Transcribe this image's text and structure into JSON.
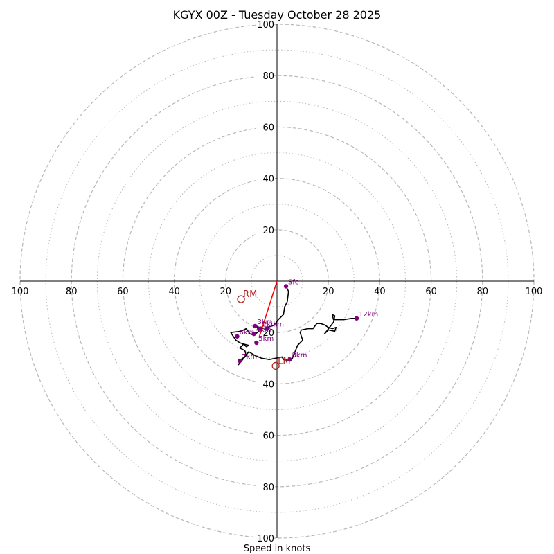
{
  "chart_data": {
    "type": "line",
    "title": "KGYX 00Z - Tuesday October 28 2025",
    "xlabel": "Speed in knots",
    "ylabel": "",
    "xlim": [
      -100,
      100
    ],
    "ylim": [
      -100,
      100
    ],
    "axis_tick_labels": [
      "100",
      "80",
      "60",
      "40",
      "20",
      "20",
      "40",
      "60",
      "80",
      "100",
      "100",
      "80",
      "60",
      "40",
      "20",
      "20",
      "40",
      "60",
      "80",
      "100"
    ],
    "ring_speeds_dashed": [
      20,
      40,
      60,
      80,
      100
    ],
    "ring_speeds_dotted": [
      10,
      30,
      50,
      70,
      90
    ],
    "hodograph": {
      "x": [
        3.5,
        4.5,
        4.0,
        3.0,
        2.5,
        0.5,
        -1.0,
        -2.0,
        -4.0,
        -6.0,
        -8.0,
        -7.0,
        -9.0,
        -10.5,
        -12.0,
        -14.0,
        -18.0,
        -16.0,
        -14.5,
        -13.0,
        -12.0,
        -11.0,
        -13.0,
        -14.5,
        -12.5,
        -12.0,
        -14.0,
        -15.0,
        -12.5,
        -11.0,
        -8.5,
        -6.0,
        -3.0,
        -0.5,
        2.0,
        2.5,
        5.0,
        6.0,
        8.0,
        9.5,
        10.0,
        9.0,
        9.5,
        12.0,
        14.0,
        15.5,
        17.0,
        18.5,
        20.0,
        21.5,
        23.0,
        22.5,
        20.0,
        18.5,
        22.0,
        22.5,
        21.5,
        22.0,
        23.0,
        26.0,
        29.0,
        31.0
      ],
      "y": [
        -2.0,
        -4.0,
        -8.0,
        -10.0,
        -13.0,
        -15.0,
        -17.0,
        -17.5,
        -18.0,
        -18.5,
        -17.5,
        -19.5,
        -21.0,
        -20.5,
        -18.5,
        -19.5,
        -20.0,
        -23.0,
        -24.0,
        -24.5,
        -25.5,
        -25.0,
        -24.5,
        -26.0,
        -27.0,
        -29.0,
        -30.5,
        -32.5,
        -29.5,
        -27.5,
        -29.0,
        -30.0,
        -30.5,
        -30.0,
        -29.5,
        -30.5,
        -31.0,
        -30.0,
        -25.0,
        -23.5,
        -23.0,
        -20.0,
        -19.0,
        -18.5,
        -18.5,
        -16.5,
        -16.5,
        -17.0,
        -18.0,
        -18.5,
        -18.0,
        -19.5,
        -19.0,
        -20.5,
        -16.0,
        -13.5,
        -13.0,
        -15.0,
        -15.0,
        -15.0,
        -14.5,
        -14.5
      ]
    },
    "height_markers": [
      {
        "label": "Sfc",
        "x": 3.5,
        "y": -2.0
      },
      {
        "label": "1km",
        "x": -4.0,
        "y": -18.5
      },
      {
        "label": "2km",
        "x": -6.5,
        "y": -18.5
      },
      {
        "label": "3km",
        "x": -8.5,
        "y": -17.5
      },
      {
        "label": "4km",
        "x": -9.0,
        "y": -20.5
      },
      {
        "label": "5km",
        "x": -8.0,
        "y": -24.0
      },
      {
        "label": "6km",
        "x": -15.5,
        "y": -21.5
      },
      {
        "label": "7km",
        "x": -14.5,
        "y": -31.0
      },
      {
        "label": "8km",
        "x": 5.0,
        "y": -30.5
      },
      {
        "label": "12km",
        "x": 31.0,
        "y": -14.5
      }
    ],
    "storm_motion": {
      "rm": {
        "label": "RM",
        "x": -14.0,
        "y": -7.0
      },
      "lm": {
        "label": "LM",
        "x": -0.5,
        "y": -33.0
      },
      "shear_vector": {
        "x1": 0.0,
        "y1": 0.0,
        "x2": -7.0,
        "y2": -22.0
      }
    },
    "colors": {
      "ring": "#b8b8b8",
      "axis": "#000000",
      "hodograph_line": "#000000",
      "marker": "#800080",
      "storm_motion": "#b22222",
      "shear_vector": "#ff0000"
    }
  }
}
